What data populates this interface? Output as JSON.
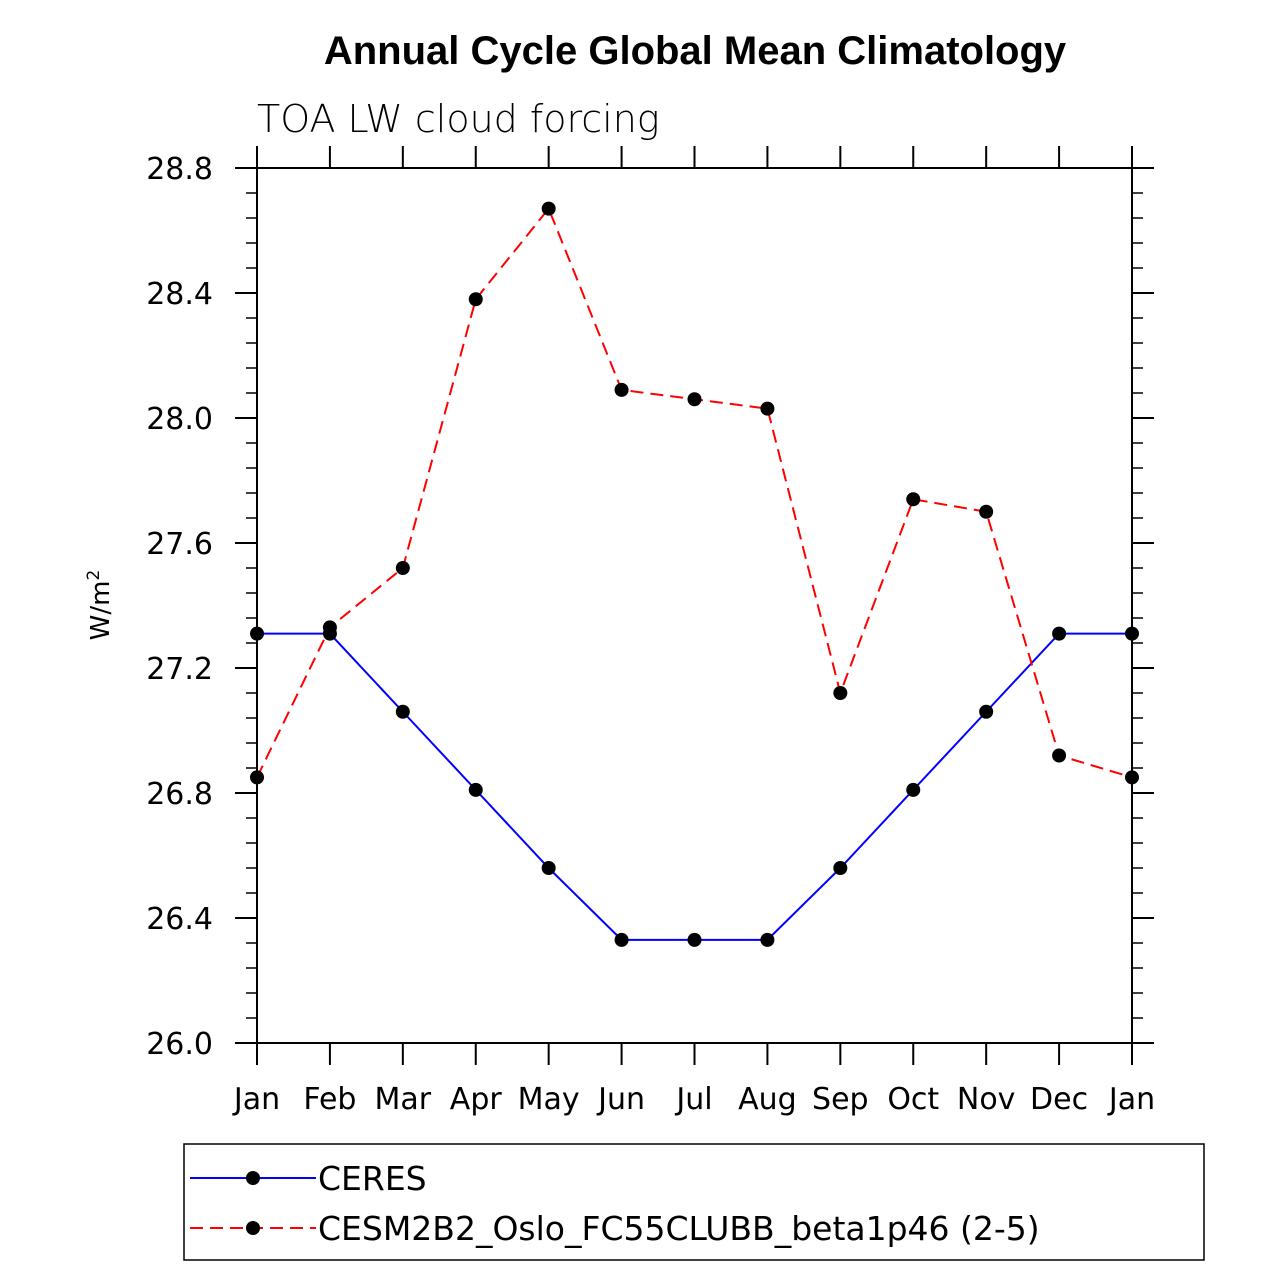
{
  "chart_data": {
    "type": "line",
    "title": "Annual Cycle Global Mean Climatology",
    "subtitle": "TOA LW cloud forcing",
    "ylabel_base": "W/m",
    "ylabel_sup": "2",
    "xlabel": "",
    "categories": [
      "Jan",
      "Feb",
      "Mar",
      "Apr",
      "May",
      "Jun",
      "Jul",
      "Aug",
      "Sep",
      "Oct",
      "Nov",
      "Dec",
      "Jan"
    ],
    "ylim": [
      26.0,
      28.8
    ],
    "yticks": [
      "26.0",
      "26.4",
      "26.8",
      "27.2",
      "27.6",
      "28.0",
      "28.4",
      "28.8"
    ],
    "legend_position": "bottom",
    "series": [
      {
        "name": "CERES",
        "color": "#0000ff",
        "dash": "solid",
        "values": [
          27.31,
          27.31,
          27.06,
          26.81,
          26.56,
          26.33,
          26.33,
          26.33,
          26.56,
          26.81,
          27.06,
          27.31,
          27.31
        ]
      },
      {
        "name": "CESM2B2_Oslo_FC55CLUBB_beta1p46 (2-5)",
        "color": "#ff0000",
        "dash": "dashed",
        "values": [
          26.85,
          27.33,
          27.52,
          28.38,
          28.67,
          28.09,
          28.06,
          28.03,
          27.12,
          27.74,
          27.7,
          26.92,
          26.85
        ]
      }
    ]
  }
}
